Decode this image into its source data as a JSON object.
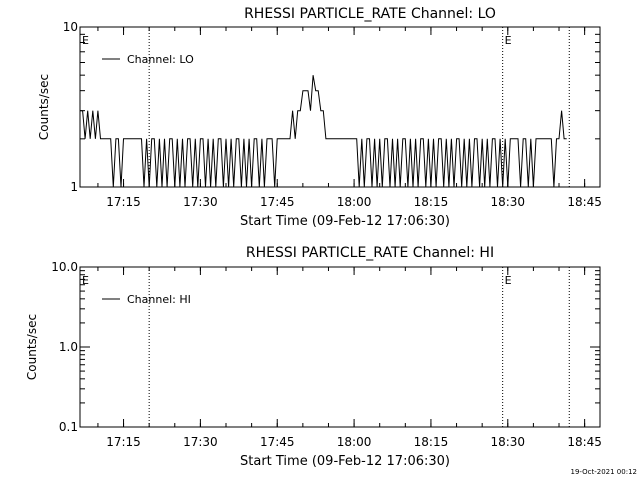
{
  "chart_data": [
    {
      "type": "line",
      "title": "RHESSI PARTICLE_RATE Channel: LO",
      "xlabel": "Start Time (09-Feb-12 17:06:30)",
      "ylabel": "Counts/sec",
      "yscale": "log",
      "ylim": [
        1,
        10
      ],
      "ytick_labels": [
        "1",
        "10"
      ],
      "xtick_labels": [
        "17:15",
        "17:30",
        "17:45",
        "18:00",
        "18:15",
        "18:30",
        "18:45"
      ],
      "xtick_times": [
        "17:15",
        "17:30",
        "17:45",
        "18:00",
        "18:15",
        "18:30",
        "18:45"
      ],
      "xlim": [
        "17:06:30",
        "18:48"
      ],
      "legend": {
        "placement": "top-left",
        "entries": [
          "Channel: LO"
        ]
      },
      "markers": [
        {
          "time": "17:06:30",
          "label": "E",
          "line": false
        },
        {
          "time": "17:20",
          "label": "",
          "line": true
        },
        {
          "time": "18:29",
          "label": "E",
          "line": true
        },
        {
          "time": "18:42",
          "label": "",
          "line": true
        }
      ],
      "series": [
        {
          "name": "Channel: LO",
          "points": [
            [
              "17:06:30",
              3
            ],
            [
              "17:07:00",
              3
            ],
            [
              "17:07:30",
              2
            ],
            [
              "17:08:00",
              3
            ],
            [
              "17:08:30",
              2
            ],
            [
              "17:09:00",
              3
            ],
            [
              "17:09:30",
              2
            ],
            [
              "17:10:00",
              3
            ],
            [
              "17:10:30",
              2
            ],
            [
              "17:11:00",
              2
            ],
            [
              "17:11:30",
              2
            ],
            [
              "17:12:00",
              2
            ],
            [
              "17:12:30",
              2
            ],
            [
              "17:13:00",
              1
            ],
            [
              "17:13:30",
              2
            ],
            [
              "17:14:00",
              2
            ],
            [
              "17:14:30",
              1
            ],
            [
              "17:15:00",
              2
            ],
            [
              "17:15:30",
              2
            ],
            [
              "17:16:00",
              2
            ],
            [
              "17:16:30",
              2
            ],
            [
              "17:17:00",
              2
            ],
            [
              "17:17:30",
              2
            ],
            [
              "17:18:00",
              2
            ],
            [
              "17:18:30",
              2
            ],
            [
              "17:19:00",
              1
            ],
            [
              "17:19:30",
              2
            ],
            [
              "17:20:00",
              1
            ],
            [
              "17:20:30",
              2
            ],
            [
              "17:21:00",
              2
            ],
            [
              "17:21:30",
              1
            ],
            [
              "17:22:00",
              2
            ],
            [
              "17:22:30",
              1
            ],
            [
              "17:23:00",
              2
            ],
            [
              "17:23:30",
              1
            ],
            [
              "17:24:00",
              2
            ],
            [
              "17:24:30",
              2
            ],
            [
              "17:25:00",
              1
            ],
            [
              "17:25:30",
              2
            ],
            [
              "17:26:00",
              1
            ],
            [
              "17:26:30",
              2
            ],
            [
              "17:27:00",
              1
            ],
            [
              "17:27:30",
              2
            ],
            [
              "17:28:00",
              2
            ],
            [
              "17:28:30",
              1
            ],
            [
              "17:29:00",
              2
            ],
            [
              "17:29:30",
              1
            ],
            [
              "17:30:00",
              2
            ],
            [
              "17:30:30",
              2
            ],
            [
              "17:31:00",
              1
            ],
            [
              "17:31:30",
              2
            ],
            [
              "17:32:00",
              1
            ],
            [
              "17:32:30",
              2
            ],
            [
              "17:33:00",
              1
            ],
            [
              "17:33:30",
              2
            ],
            [
              "17:34:00",
              2
            ],
            [
              "17:34:30",
              1
            ],
            [
              "17:35:00",
              2
            ],
            [
              "17:35:30",
              1
            ],
            [
              "17:36:00",
              2
            ],
            [
              "17:36:30",
              1
            ],
            [
              "17:37:00",
              2
            ],
            [
              "17:37:30",
              2
            ],
            [
              "17:38:00",
              1
            ],
            [
              "17:38:30",
              2
            ],
            [
              "17:39:00",
              1
            ],
            [
              "17:39:30",
              2
            ],
            [
              "17:40:00",
              1
            ],
            [
              "17:40:30",
              2
            ],
            [
              "17:41:00",
              2
            ],
            [
              "17:41:30",
              1
            ],
            [
              "17:42:00",
              2
            ],
            [
              "17:42:30",
              1
            ],
            [
              "17:43:00",
              2
            ],
            [
              "17:43:30",
              2
            ],
            [
              "17:44:00",
              2
            ],
            [
              "17:44:30",
              1
            ],
            [
              "17:45:00",
              2
            ],
            [
              "17:45:30",
              2
            ],
            [
              "17:46:00",
              2
            ],
            [
              "17:46:30",
              2
            ],
            [
              "17:47:00",
              2
            ],
            [
              "17:47:30",
              2
            ],
            [
              "17:48:00",
              3
            ],
            [
              "17:48:30",
              2
            ],
            [
              "17:49:00",
              3
            ],
            [
              "17:49:30",
              3
            ],
            [
              "17:50:00",
              4
            ],
            [
              "17:50:30",
              4
            ],
            [
              "17:51:00",
              4
            ],
            [
              "17:51:30",
              3
            ],
            [
              "17:52:00",
              5
            ],
            [
              "17:52:30",
              4
            ],
            [
              "17:53:00",
              4
            ],
            [
              "17:53:30",
              3
            ],
            [
              "17:54:00",
              3
            ],
            [
              "17:54:30",
              2
            ],
            [
              "17:55:00",
              2
            ],
            [
              "17:55:30",
              2
            ],
            [
              "17:56:00",
              2
            ],
            [
              "17:56:30",
              2
            ],
            [
              "17:57:00",
              2
            ],
            [
              "17:57:30",
              2
            ],
            [
              "17:58:00",
              2
            ],
            [
              "17:58:30",
              2
            ],
            [
              "17:59:00",
              2
            ],
            [
              "17:59:30",
              2
            ],
            [
              "18:00:00",
              2
            ],
            [
              "18:00:30",
              2
            ],
            [
              "18:01:00",
              1
            ],
            [
              "18:01:30",
              2
            ],
            [
              "18:02:00",
              1
            ],
            [
              "18:02:30",
              2
            ],
            [
              "18:03:00",
              2
            ],
            [
              "18:03:30",
              1
            ],
            [
              "18:04:00",
              2
            ],
            [
              "18:04:30",
              1
            ],
            [
              "18:05:00",
              2
            ],
            [
              "18:05:30",
              1
            ],
            [
              "18:06:00",
              2
            ],
            [
              "18:06:30",
              2
            ],
            [
              "18:07:00",
              1
            ],
            [
              "18:07:30",
              2
            ],
            [
              "18:08:00",
              1
            ],
            [
              "18:08:30",
              2
            ],
            [
              "18:09:00",
              1
            ],
            [
              "18:09:30",
              2
            ],
            [
              "18:10:00",
              2
            ],
            [
              "18:10:30",
              1
            ],
            [
              "18:11:00",
              2
            ],
            [
              "18:11:30",
              1
            ],
            [
              "18:12:00",
              2
            ],
            [
              "18:12:30",
              1
            ],
            [
              "18:13:00",
              2
            ],
            [
              "18:13:30",
              2
            ],
            [
              "18:14:00",
              1
            ],
            [
              "18:14:30",
              2
            ],
            [
              "18:15:00",
              1
            ],
            [
              "18:15:30",
              2
            ],
            [
              "18:16:00",
              1
            ],
            [
              "18:16:30",
              2
            ],
            [
              "18:17:00",
              2
            ],
            [
              "18:17:30",
              1
            ],
            [
              "18:18:00",
              2
            ],
            [
              "18:18:30",
              1
            ],
            [
              "18:19:00",
              2
            ],
            [
              "18:19:30",
              1
            ],
            [
              "18:20:00",
              2
            ],
            [
              "18:20:30",
              2
            ],
            [
              "18:21:00",
              1
            ],
            [
              "18:21:30",
              2
            ],
            [
              "18:22:00",
              1
            ],
            [
              "18:22:30",
              2
            ],
            [
              "18:23:00",
              1
            ],
            [
              "18:23:30",
              2
            ],
            [
              "18:24:00",
              2
            ],
            [
              "18:24:30",
              1
            ],
            [
              "18:25:00",
              2
            ],
            [
              "18:25:30",
              1
            ],
            [
              "18:26:00",
              2
            ],
            [
              "18:26:30",
              1
            ],
            [
              "18:27:00",
              2
            ],
            [
              "18:27:30",
              2
            ],
            [
              "18:28:00",
              1
            ],
            [
              "18:28:30",
              2
            ],
            [
              "18:29:00",
              1
            ],
            [
              "18:29:30",
              2
            ],
            [
              "18:30:00",
              1
            ],
            [
              "18:30:30",
              2
            ],
            [
              "18:31:00",
              2
            ],
            [
              "18:31:30",
              2
            ],
            [
              "18:32:00",
              2
            ],
            [
              "18:32:30",
              1
            ],
            [
              "18:33:00",
              2
            ],
            [
              "18:33:30",
              2
            ],
            [
              "18:34:00",
              1
            ],
            [
              "18:34:30",
              2
            ],
            [
              "18:35:00",
              1
            ],
            [
              "18:35:30",
              2
            ],
            [
              "18:36:00",
              2
            ],
            [
              "18:36:30",
              2
            ],
            [
              "18:37:00",
              2
            ],
            [
              "18:37:30",
              2
            ],
            [
              "18:38:00",
              2
            ],
            [
              "18:38:30",
              2
            ],
            [
              "18:39:00",
              1
            ],
            [
              "18:39:30",
              2
            ],
            [
              "18:40:00",
              2
            ],
            [
              "18:40:30",
              3
            ],
            [
              "18:41:00",
              2
            ],
            [
              "18:41:30",
              2
            ]
          ]
        }
      ]
    },
    {
      "type": "line",
      "title": "RHESSI PARTICLE_RATE Channel: HI",
      "xlabel": "Start Time (09-Feb-12 17:06:30)",
      "ylabel": "Counts/sec",
      "yscale": "log",
      "ylim": [
        0.1,
        10
      ],
      "ytick_labels": [
        "0.1",
        "1.0",
        "10.0"
      ],
      "xtick_labels": [
        "17:15",
        "17:30",
        "17:45",
        "18:00",
        "18:15",
        "18:30",
        "18:45"
      ],
      "xtick_times": [
        "17:15",
        "17:30",
        "17:45",
        "18:00",
        "18:15",
        "18:30",
        "18:45"
      ],
      "xlim": [
        "17:06:30",
        "18:48"
      ],
      "legend": {
        "placement": "top-left",
        "entries": [
          "Channel: HI"
        ]
      },
      "markers": [
        {
          "time": "17:06:30",
          "label": "E",
          "line": false
        },
        {
          "time": "17:20",
          "label": "",
          "line": true
        },
        {
          "time": "18:29",
          "label": "E",
          "line": true
        },
        {
          "time": "18:42",
          "label": "",
          "line": true
        }
      ],
      "series": [
        {
          "name": "Channel: HI",
          "points": []
        }
      ]
    }
  ],
  "footer": {
    "timestamp": "19-Oct-2021 00:12"
  }
}
